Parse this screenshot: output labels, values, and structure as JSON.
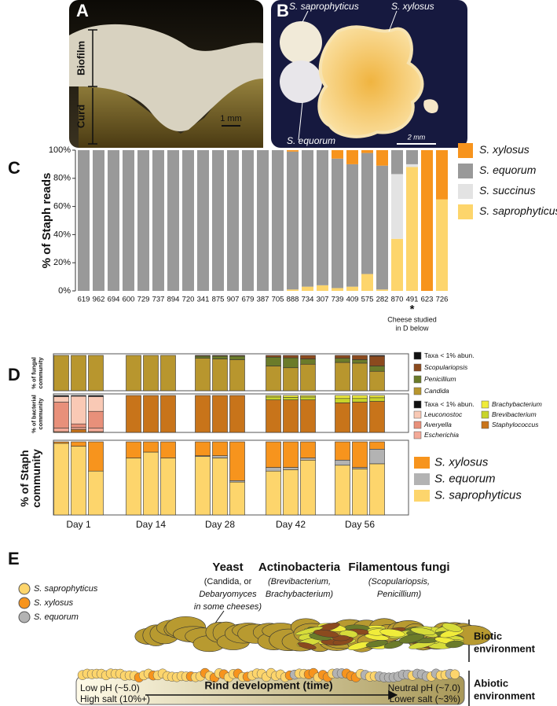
{
  "panel_a": {
    "label": "A",
    "layers": [
      "Biofilm",
      "Curd"
    ],
    "scale": "1 mm"
  },
  "panel_b": {
    "label": "B",
    "colonies": [
      "S. saprophyticus",
      "S. xylosus",
      "S. equorum"
    ],
    "scale": "2 mm"
  },
  "chart_data": [
    {
      "type": "bar",
      "stacked": true,
      "panel": "C",
      "y_label": [
        "% of Staph reads"
      ],
      "categories": [
        "619",
        "962",
        "694",
        "600",
        "729",
        "737",
        "894",
        "720",
        "341",
        "875",
        "907",
        "679",
        "387",
        "705",
        "888",
        "734",
        "307",
        "739",
        "409",
        "575",
        "282",
        "870",
        "491",
        "623",
        "726"
      ],
      "series": [
        {
          "name": "S. xylosus",
          "color": "#f7941d",
          "values": [
            0,
            0,
            0,
            0,
            0,
            0,
            0,
            0,
            0,
            0,
            0,
            0,
            0,
            0,
            1,
            0,
            0,
            6,
            10,
            2,
            11,
            0,
            0,
            100,
            35
          ]
        },
        {
          "name": "S. equorum",
          "color": "#999999",
          "values": [
            100,
            100,
            100,
            100,
            100,
            100,
            100,
            100,
            100,
            100,
            100,
            100,
            100,
            100,
            98,
            97,
            96,
            92,
            87,
            86,
            88,
            17,
            10,
            0,
            0
          ]
        },
        {
          "name": "S. succinus",
          "color": "#e3e3e3",
          "values": [
            0,
            0,
            0,
            0,
            0,
            0,
            0,
            0,
            0,
            0,
            0,
            0,
            0,
            0,
            0,
            0,
            0,
            0,
            0,
            0,
            0,
            46,
            2,
            0,
            0
          ]
        },
        {
          "name": "S. saprophyticus",
          "color": "#fdd56c",
          "values": [
            0,
            0,
            0,
            0,
            0,
            0,
            0,
            0,
            0,
            0,
            0,
            0,
            0,
            0,
            1,
            3,
            4,
            2,
            3,
            12,
            1,
            37,
            88,
            0,
            65
          ]
        }
      ],
      "ylim": [
        0,
        100
      ],
      "yticks": [
        {
          "value": 0,
          "label": "0%"
        },
        {
          "value": 20,
          "label": "20%"
        },
        {
          "value": 40,
          "label": "40%"
        },
        {
          "value": 60,
          "label": "60%"
        },
        {
          "value": 80,
          "label": "80%"
        },
        {
          "value": 100,
          "label": "100%"
        }
      ],
      "annotations": [
        "*",
        "Cheese studied",
        "in D below"
      ]
    },
    {
      "type": "bar",
      "stacked": true,
      "panel": "D",
      "y_label": [
        "% of fungal",
        "community"
      ],
      "series": [
        {
          "name": "Taxa < 1% abun.",
          "color": "#111111",
          "values": [
            0,
            0,
            0,
            0,
            0,
            0,
            0,
            0,
            0,
            0,
            0,
            0,
            0,
            0,
            2
          ]
        },
        {
          "name": "Scopulariopsis",
          "color": "#8b4a1e",
          "values": [
            0,
            0,
            0,
            0,
            0,
            0,
            2,
            2,
            2,
            5,
            7,
            10,
            8,
            12,
            28
          ]
        },
        {
          "name": "Penicillium",
          "color": "#6b7b2a",
          "values": [
            0,
            0,
            0,
            0,
            0,
            0,
            6,
            8,
            10,
            25,
            28,
            15,
            12,
            10,
            15
          ]
        },
        {
          "name": "Candida",
          "color": "#b8962e",
          "values": [
            100,
            100,
            100,
            100,
            100,
            100,
            92,
            90,
            88,
            70,
            65,
            75,
            80,
            78,
            55
          ]
        }
      ],
      "ylim": [
        0,
        100
      ]
    },
    {
      "type": "bar",
      "stacked": true,
      "y_label": [
        "% of bacterial",
        "community"
      ],
      "series": [
        {
          "name": "Taxa < 1% abun.",
          "color": "#111111",
          "values": [
            3,
            2,
            3,
            0,
            0,
            0,
            0,
            0,
            0,
            0,
            0,
            0,
            0,
            0,
            0
          ]
        },
        {
          "name": "Leuconostoc",
          "color": "#f9c9b5",
          "values": [
            15,
            75,
            40,
            0,
            0,
            0,
            0,
            0,
            0,
            0,
            0,
            0,
            0,
            0,
            0
          ]
        },
        {
          "name": "Averyella",
          "color": "#e8907a",
          "values": [
            70,
            10,
            45,
            0,
            0,
            0,
            0,
            0,
            0,
            0,
            0,
            0,
            0,
            0,
            0
          ]
        },
        {
          "name": "Escherichia",
          "color": "#f4aa98",
          "values": [
            10,
            5,
            10,
            0,
            0,
            0,
            0,
            0,
            0,
            0,
            0,
            0,
            0,
            0,
            0
          ]
        },
        {
          "name": "Brachybacterium",
          "color": "#f0ec3a",
          "values": [
            0,
            0,
            0,
            0,
            0,
            0,
            0,
            0,
            0,
            4,
            5,
            4,
            8,
            8,
            6
          ]
        },
        {
          "name": "Brevibacterium",
          "color": "#c8d42a",
          "values": [
            0,
            0,
            0,
            0,
            0,
            0,
            0,
            0,
            0,
            8,
            7,
            8,
            12,
            10,
            10
          ]
        },
        {
          "name": "Staphylococcus",
          "color": "#c8741a",
          "values": [
            2,
            8,
            2,
            100,
            100,
            100,
            100,
            100,
            100,
            88,
            88,
            88,
            80,
            82,
            84
          ]
        }
      ],
      "ylim": [
        0,
        100
      ]
    },
    {
      "type": "bar",
      "stacked": true,
      "y_label": [
        "% of Staph",
        "community"
      ],
      "categories": [
        null,
        "Day 1",
        null,
        null,
        "Day 14",
        null,
        null,
        "Day 28",
        null,
        null,
        "Day 42",
        null,
        null,
        "Day 56",
        null
      ],
      "series": [
        {
          "name": "S. xylosus",
          "color": "#f7941d",
          "values": [
            2,
            6,
            40,
            22,
            14,
            22,
            19,
            19,
            53,
            35,
            35,
            22,
            25,
            35,
            10
          ]
        },
        {
          "name": "S. equorum",
          "color": "#b3b3b3",
          "values": [
            0,
            0,
            0,
            0,
            0,
            0,
            1,
            3,
            2,
            5,
            3,
            3,
            7,
            2,
            20
          ]
        },
        {
          "name": "S. saprophyticus",
          "color": "#fdd56c",
          "values": [
            98,
            94,
            60,
            78,
            86,
            78,
            80,
            78,
            45,
            60,
            62,
            75,
            68,
            63,
            70
          ]
        }
      ],
      "ylim": [
        0,
        100
      ]
    }
  ],
  "panel_e": {
    "label": "E",
    "legend": [
      {
        "name": "S. saprophyticus",
        "color": "#fdd56c"
      },
      {
        "name": "S. xylosus",
        "color": "#f7941d"
      },
      {
        "name": "S. equorum",
        "color": "#b3b3b3"
      }
    ],
    "groups": [
      {
        "title": "Yeast",
        "detail": [
          "(Candida, or",
          "Debaryomyces",
          "in some cheeses)"
        ]
      },
      {
        "title": "Actinobacteria",
        "detail": [
          "(Brevibacterium,",
          "Brachybacterium)"
        ]
      },
      {
        "title": "Filamentous fungi",
        "detail": [
          "(Scopulariopsis,",
          "Penicillium)"
        ]
      }
    ],
    "biotic": [
      "Biotic",
      "environment"
    ],
    "abiotic": [
      "Abiotic",
      "environment"
    ],
    "start": [
      "Low pH (~5.0)",
      "High salt (10%+)"
    ],
    "arrow": "Rind development (time)",
    "end": [
      "Neutral pH (~7.0)",
      "Lower salt (~3%)"
    ]
  }
}
